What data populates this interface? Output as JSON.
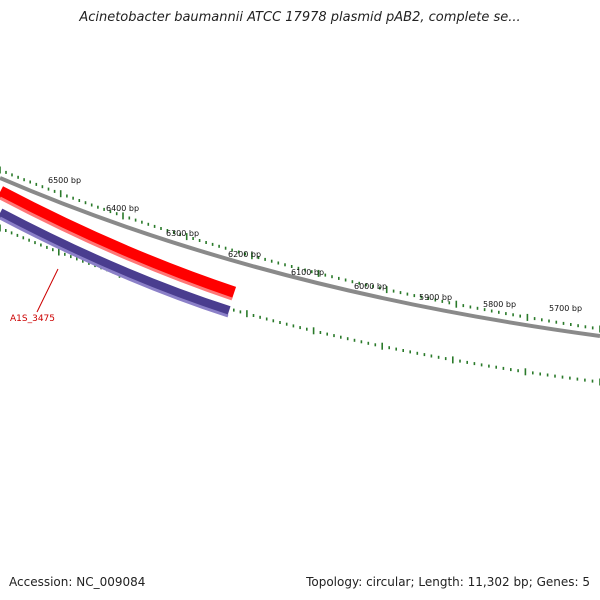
{
  "title": "Acinetobacter baumannii ATCC 17978 plasmid pAB2, complete se...",
  "footer": {
    "accession_label": "Accession:",
    "accession": "NC_009084",
    "topology_label": "Topology:",
    "topology": "circular",
    "length_label": "Length:",
    "length": "11,302 bp",
    "genes_label": "Genes:",
    "genes": "5"
  },
  "colors": {
    "backbone": "#8a8a8a",
    "tick_marks": "#2a7a2a",
    "forward_gene": "#ff0000",
    "reverse_gene": "#4a3d8f",
    "gene_label": "#cc0000"
  },
  "ticks": [
    {
      "label": "6500 bp"
    },
    {
      "label": "6400 bp"
    },
    {
      "label": "6300 bp"
    },
    {
      "label": "6200 bp"
    },
    {
      "label": "6100 bp"
    },
    {
      "label": "6000 bp"
    },
    {
      "label": "5900 bp"
    },
    {
      "label": "5800 bp"
    },
    {
      "label": "5700 bp"
    }
  ],
  "genes": [
    {
      "strand": "forward"
    },
    {
      "strand": "reverse",
      "label": "A1S_3475"
    }
  ]
}
